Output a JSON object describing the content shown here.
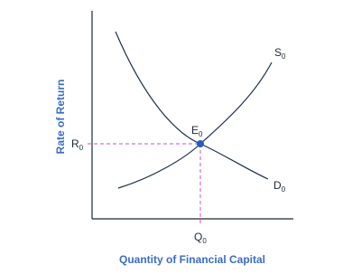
{
  "diagram": {
    "y_axis_title": "Rate of Return",
    "x_axis_title": "Quantity of Financial Capital",
    "supply_label": {
      "main": "S",
      "sub": "0"
    },
    "demand_label": {
      "main": "D",
      "sub": "0"
    },
    "equilibrium_label": {
      "main": "E",
      "sub": "0"
    },
    "rate_label": {
      "main": "R",
      "sub": "0"
    },
    "quantity_label": {
      "main": "Q",
      "sub": "0"
    }
  }
}
